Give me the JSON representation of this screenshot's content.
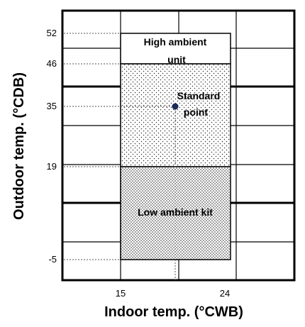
{
  "diagram": {
    "x_axis": {
      "label": "Indoor temp. (°CWB)",
      "ticks": [
        "15",
        "24"
      ]
    },
    "y_axis": {
      "label": "Outdoor temp. (°CDB)",
      "ticks": [
        "52",
        "46",
        "35",
        "19",
        "-5"
      ]
    },
    "regions": {
      "high_ambient": {
        "line1": "High ambient",
        "line2": "unit"
      },
      "low_ambient": {
        "label": "Low ambient kit"
      }
    },
    "standard_point": {
      "line1": "Standard",
      "line2": "point"
    }
  }
}
